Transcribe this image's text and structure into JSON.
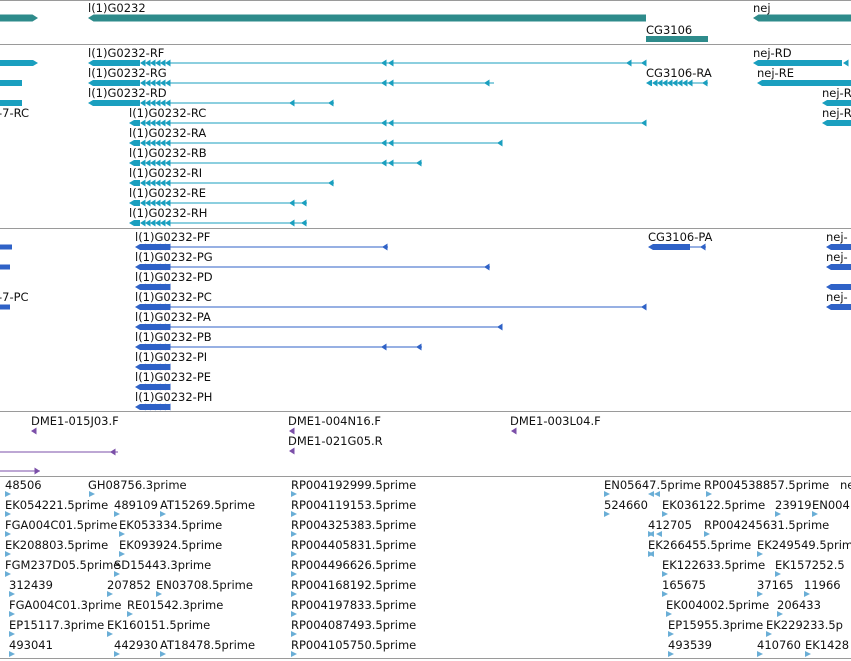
{
  "colors": {
    "gene": "#2e8b8b",
    "transcript": "#1a9fbf",
    "protein": "#2f62c7",
    "clone": "#7b4fa8",
    "est": "#6aaed6",
    "separator": "#9a9a9a"
  },
  "gene_track": {
    "labels": [
      "l(1)G0232",
      "CG3106",
      "nej"
    ]
  },
  "transcript_track": {
    "labels": [
      "l(1)G0232-RF",
      "l(1)G0232-RG",
      "CG3106-RA",
      "l(1)G0232-RD",
      "nej-RD",
      "nej-RE",
      "-7-RC",
      "nej-R",
      "nej-R",
      "l(1)G0232-RC",
      "l(1)G0232-RA",
      "l(1)G0232-RB",
      "l(1)G0232-RI",
      "l(1)G0232-RE",
      "l(1)G0232-RH"
    ]
  },
  "protein_track": {
    "labels": [
      "l(1)G0232-PF",
      "CG3106-PA",
      "l(1)G0232-PG",
      "l(1)G0232-PD",
      "-7-PC",
      "l(1)G0232-PC",
      "l(1)G0232-PA",
      "l(1)G0232-PB",
      "l(1)G0232-PI",
      "l(1)G0232-PE",
      "l(1)G0232-PH",
      "nej-",
      "nej-",
      "nej-"
    ]
  },
  "clone_track": {
    "labels": [
      "DME1-015J03.F",
      "DME1-004N16.F",
      "DME1-003L04.F",
      "DME1-021G05.R"
    ]
  },
  "est_track": {
    "labels": [
      "48506",
      "GH08756.3prime",
      "RP004192999.5prime",
      "EN05647.5prime",
      "RP004538857.5prime",
      "nej",
      "EK054221.5prime",
      "489109",
      "AT15269.5prime",
      "RP004119153.5prime",
      "524660",
      "EK036122.5prime",
      "23919",
      "EN004",
      "FGA004C01.5prime",
      "EK053334.5prime",
      "RP004325383.5prime",
      "412705",
      "RP004245631.5prime",
      "EK208803.5prime",
      "EK093924.5prime",
      "RP004405831.5prime",
      "EK266455.5prime",
      "EK249549.5prime",
      "FGM237D05.5prime",
      "SD15443.3prime",
      "RP004496626.5prime",
      "EK122633.5prime",
      "EK157252.5",
      "312439",
      "207852",
      "EN03708.5prime",
      "RP004168192.5prime",
      "165675",
      "37165",
      "11966",
      "FGA004C01.3prime",
      "RE01542.3prime",
      "RP004197833.5prime",
      "EK004002.5prime",
      "206433",
      "EP15117.3prime",
      "EK160151.5prime",
      "RP004087493.5prime",
      "EP15955.3prime",
      "EK229233.5p",
      "493041",
      "442930",
      "AT18478.5prime",
      "RP004105750.5prime",
      "493539",
      "410760",
      "EK1428"
    ]
  }
}
